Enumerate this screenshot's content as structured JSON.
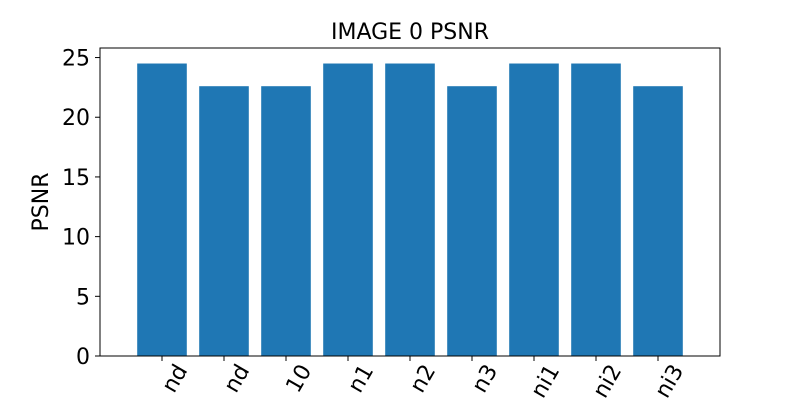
{
  "chart_data": {
    "type": "bar",
    "title": "IMAGE 0 PSNR",
    "xlabel": "",
    "ylabel": "PSNR",
    "categories": [
      "nd",
      "nd",
      "10",
      "n1",
      "n2",
      "n3",
      "ni1",
      "ni2",
      "ni3"
    ],
    "values": [
      24.5,
      22.6,
      22.6,
      24.5,
      24.5,
      22.6,
      24.5,
      24.5,
      22.6
    ],
    "ylim": [
      0,
      25.8
    ],
    "yticks": [
      0,
      5,
      10,
      15,
      20,
      25
    ],
    "x_tick_rotation_deg": -60,
    "grid": false,
    "legend": "none",
    "bar_color": "#1f77b4"
  }
}
